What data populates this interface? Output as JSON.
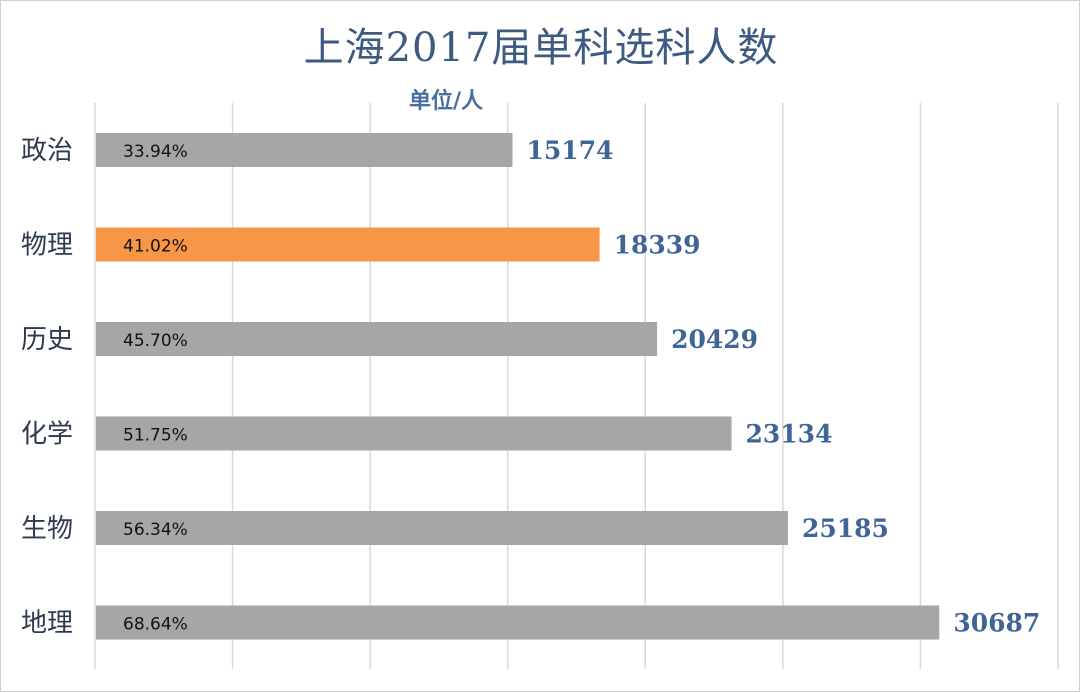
{
  "chart_data": {
    "type": "bar",
    "orientation": "horizontal",
    "title": "上海2017届单科选科人数",
    "unit_label": "单位/人",
    "categories": [
      "政治",
      "物理",
      "历史",
      "化学",
      "生物",
      "地理"
    ],
    "values": [
      15174,
      18339,
      20429,
      23134,
      25185,
      30687
    ],
    "percent_labels": [
      "33.94%",
      "41.02%",
      "45.70%",
      "51.75%",
      "56.34%",
      "68.64%"
    ],
    "highlight_category": "物理",
    "xlim": [
      0,
      35000
    ],
    "grid": true,
    "colors": {
      "default_bar": "#a6a6a6",
      "highlight_bar": "#f79646",
      "title": "#3d5a80",
      "value_label": "#3f6597",
      "gridline": "#d9d9d9"
    }
  }
}
